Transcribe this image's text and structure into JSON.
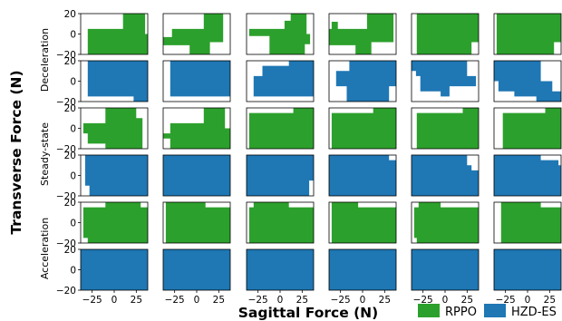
{
  "chart_data": {
    "type": "area",
    "xlabel": "Sagittal Force (N)",
    "ylabel": "Transverse Force (N)",
    "xlim": [
      -38,
      38
    ],
    "ylim": [
      -20,
      20
    ],
    "x_ticks": [
      -25,
      0,
      25
    ],
    "y_ticks": [
      20,
      0,
      -20
    ],
    "colors": {
      "RPPO": "#2ca02c",
      "HZD-ES": "#1f77b4"
    },
    "legend": {
      "placement": "bottom-right",
      "entries": [
        "RPPO",
        "HZD-ES"
      ]
    },
    "row_groups": [
      "Deceleration",
      "Steady-state",
      "Acceleration"
    ],
    "rows": [
      {
        "group": "Deceleration",
        "series": "RPPO",
        "panels": [
          [
            [
              -30,
              -20
            ],
            [
              -30,
              5
            ],
            [
              10,
              5
            ],
            [
              10,
              20
            ],
            [
              35,
              20
            ],
            [
              35,
              0
            ],
            [
              42,
              0
            ],
            [
              42,
              -20
            ]
          ],
          [
            [
              -38,
              -11
            ],
            [
              -38,
              -3
            ],
            [
              -28,
              -3
            ],
            [
              -28,
              5
            ],
            [
              8,
              5
            ],
            [
              8,
              20
            ],
            [
              30,
              20
            ],
            [
              30,
              -8
            ],
            [
              15,
              -8
            ],
            [
              15,
              -20
            ],
            [
              -8,
              -20
            ],
            [
              -8,
              -11
            ]
          ],
          [
            [
              -12,
              -20
            ],
            [
              -12,
              -2
            ],
            [
              -35,
              -2
            ],
            [
              -35,
              5
            ],
            [
              5,
              5
            ],
            [
              5,
              13
            ],
            [
              12,
              13
            ],
            [
              12,
              20
            ],
            [
              30,
              20
            ],
            [
              30,
              0
            ],
            [
              34,
              0
            ],
            [
              34,
              -10
            ],
            [
              28,
              -10
            ],
            [
              28,
              -20
            ]
          ],
          [
            [
              -38,
              -11
            ],
            [
              -38,
              5
            ],
            [
              -35,
              5
            ],
            [
              -35,
              12
            ],
            [
              -28,
              12
            ],
            [
              -28,
              5
            ],
            [
              5,
              5
            ],
            [
              5,
              20
            ],
            [
              35,
              20
            ],
            [
              35,
              -8
            ],
            [
              10,
              -8
            ],
            [
              10,
              -20
            ],
            [
              -8,
              -20
            ],
            [
              -8,
              -11
            ]
          ],
          [
            [
              -32,
              -20
            ],
            [
              -32,
              20
            ],
            [
              40,
              20
            ],
            [
              40,
              -8
            ],
            [
              30,
              -8
            ],
            [
              30,
              -20
            ]
          ],
          [
            [
              -35,
              -20
            ],
            [
              -35,
              20
            ],
            [
              38,
              20
            ],
            [
              38,
              -8
            ],
            [
              30,
              -8
            ],
            [
              30,
              -20
            ]
          ]
        ]
      },
      {
        "group": "Deceleration",
        "series": "HZD-ES",
        "panels": [
          [
            [
              -30,
              -15
            ],
            [
              -30,
              20
            ],
            [
              38,
              20
            ],
            [
              38,
              -20
            ],
            [
              22,
              -20
            ],
            [
              22,
              -15
            ]
          ],
          [
            [
              -30,
              -15
            ],
            [
              -30,
              20
            ],
            [
              38,
              20
            ],
            [
              38,
              -15
            ]
          ],
          [
            [
              -30,
              -15
            ],
            [
              -30,
              5
            ],
            [
              -20,
              5
            ],
            [
              -20,
              15
            ],
            [
              10,
              15
            ],
            [
              10,
              20
            ],
            [
              38,
              20
            ],
            [
              38,
              -15
            ]
          ],
          [
            [
              -30,
              -5
            ],
            [
              -30,
              10
            ],
            [
              -15,
              10
            ],
            [
              -15,
              20
            ],
            [
              38,
              20
            ],
            [
              38,
              -5
            ],
            [
              30,
              -5
            ],
            [
              30,
              -20
            ],
            [
              -18,
              -20
            ],
            [
              -18,
              -5
            ]
          ],
          [
            [
              -38,
              10
            ],
            [
              -38,
              20
            ],
            [
              25,
              20
            ],
            [
              25,
              5
            ],
            [
              35,
              5
            ],
            [
              35,
              -5
            ],
            [
              5,
              -5
            ],
            [
              5,
              -15
            ],
            [
              -5,
              -15
            ],
            [
              -5,
              -10
            ],
            [
              -28,
              -10
            ],
            [
              -28,
              5
            ],
            [
              -33,
              5
            ],
            [
              -33,
              10
            ]
          ],
          [
            [
              -38,
              5
            ],
            [
              -38,
              20
            ],
            [
              15,
              20
            ],
            [
              15,
              0
            ],
            [
              28,
              0
            ],
            [
              28,
              -10
            ],
            [
              38,
              -10
            ],
            [
              38,
              -20
            ],
            [
              10,
              -20
            ],
            [
              10,
              -15
            ],
            [
              -15,
              -15
            ],
            [
              -15,
              -10
            ],
            [
              -33,
              -10
            ],
            [
              -33,
              0
            ],
            [
              -38,
              0
            ]
          ]
        ]
      },
      {
        "group": "Steady-state",
        "series": "RPPO",
        "panels": [
          [
            [
              -30,
              -15
            ],
            [
              -30,
              -5
            ],
            [
              -35,
              -5
            ],
            [
              -35,
              5
            ],
            [
              -10,
              5
            ],
            [
              -10,
              20
            ],
            [
              25,
              20
            ],
            [
              25,
              10
            ],
            [
              32,
              10
            ],
            [
              32,
              -20
            ],
            [
              -10,
              -20
            ],
            [
              -10,
              -15
            ]
          ],
          [
            [
              -30,
              -20
            ],
            [
              -30,
              -10
            ],
            [
              -38,
              -10
            ],
            [
              -38,
              -5
            ],
            [
              -30,
              -5
            ],
            [
              -30,
              5
            ],
            [
              8,
              5
            ],
            [
              8,
              20
            ],
            [
              32,
              20
            ],
            [
              32,
              0
            ],
            [
              38,
              0
            ],
            [
              38,
              -20
            ]
          ],
          [
            [
              -35,
              -20
            ],
            [
              -35,
              15
            ],
            [
              15,
              15
            ],
            [
              15,
              20
            ],
            [
              38,
              20
            ],
            [
              38,
              -20
            ]
          ],
          [
            [
              -35,
              -20
            ],
            [
              -35,
              15
            ],
            [
              12,
              15
            ],
            [
              12,
              20
            ],
            [
              38,
              20
            ],
            [
              38,
              -20
            ]
          ],
          [
            [
              -32,
              -20
            ],
            [
              -32,
              15
            ],
            [
              20,
              15
            ],
            [
              20,
              20
            ],
            [
              38,
              20
            ],
            [
              38,
              -20
            ]
          ],
          [
            [
              -28,
              -20
            ],
            [
              -28,
              15
            ],
            [
              20,
              15
            ],
            [
              20,
              20
            ],
            [
              38,
              20
            ],
            [
              38,
              -20
            ]
          ]
        ]
      },
      {
        "group": "Steady-state",
        "series": "HZD-ES",
        "panels": [
          [
            [
              -33,
              -10
            ],
            [
              -33,
              20
            ],
            [
              38,
              20
            ],
            [
              38,
              -20
            ],
            [
              -28,
              -20
            ],
            [
              -28,
              -10
            ]
          ],
          [
            [
              -38,
              -20
            ],
            [
              -38,
              20
            ],
            [
              38,
              20
            ],
            [
              38,
              -20
            ]
          ],
          [
            [
              -38,
              -20
            ],
            [
              -38,
              20
            ],
            [
              38,
              20
            ],
            [
              38,
              -5
            ],
            [
              33,
              -5
            ],
            [
              33,
              -20
            ]
          ],
          [
            [
              -38,
              -20
            ],
            [
              -38,
              20
            ],
            [
              30,
              20
            ],
            [
              30,
              15
            ],
            [
              38,
              15
            ],
            [
              38,
              -20
            ]
          ],
          [
            [
              -38,
              -20
            ],
            [
              -38,
              20
            ],
            [
              25,
              20
            ],
            [
              25,
              10
            ],
            [
              30,
              10
            ],
            [
              30,
              5
            ],
            [
              38,
              5
            ],
            [
              38,
              -20
            ]
          ],
          [
            [
              -38,
              -20
            ],
            [
              -38,
              20
            ],
            [
              15,
              20
            ],
            [
              15,
              15
            ],
            [
              35,
              15
            ],
            [
              35,
              10
            ],
            [
              38,
              10
            ],
            [
              38,
              -20
            ]
          ]
        ]
      },
      {
        "group": "Acceleration",
        "series": "RPPO",
        "panels": [
          [
            [
              -30,
              -20
            ],
            [
              -30,
              -15
            ],
            [
              -35,
              -15
            ],
            [
              -35,
              15
            ],
            [
              -10,
              15
            ],
            [
              -10,
              20
            ],
            [
              30,
              20
            ],
            [
              30,
              15
            ],
            [
              38,
              15
            ],
            [
              38,
              -20
            ]
          ],
          [
            [
              -35,
              -20
            ],
            [
              -35,
              20
            ],
            [
              10,
              20
            ],
            [
              10,
              15
            ],
            [
              38,
              15
            ],
            [
              38,
              -20
            ]
          ],
          [
            [
              -35,
              -20
            ],
            [
              -35,
              15
            ],
            [
              -30,
              15
            ],
            [
              -30,
              20
            ],
            [
              10,
              20
            ],
            [
              10,
              15
            ],
            [
              38,
              15
            ],
            [
              38,
              -20
            ]
          ],
          [
            [
              -35,
              -20
            ],
            [
              -35,
              20
            ],
            [
              -5,
              20
            ],
            [
              -5,
              15
            ],
            [
              38,
              15
            ],
            [
              38,
              -20
            ]
          ],
          [
            [
              -32,
              -20
            ],
            [
              -32,
              -15
            ],
            [
              -35,
              -15
            ],
            [
              -35,
              15
            ],
            [
              -30,
              15
            ],
            [
              -30,
              20
            ],
            [
              -5,
              20
            ],
            [
              -5,
              15
            ],
            [
              38,
              15
            ],
            [
              38,
              -20
            ]
          ],
          [
            [
              -30,
              -20
            ],
            [
              -30,
              20
            ],
            [
              15,
              20
            ],
            [
              15,
              15
            ],
            [
              38,
              15
            ],
            [
              38,
              -20
            ]
          ]
        ]
      },
      {
        "group": "Acceleration",
        "series": "HZD-ES",
        "panels": [
          [
            [
              -38,
              -20
            ],
            [
              -38,
              20
            ],
            [
              38,
              20
            ],
            [
              38,
              -20
            ]
          ],
          [
            [
              -38,
              -20
            ],
            [
              -38,
              20
            ],
            [
              38,
              20
            ],
            [
              38,
              -20
            ]
          ],
          [
            [
              -38,
              -20
            ],
            [
              -38,
              20
            ],
            [
              38,
              20
            ],
            [
              38,
              -20
            ]
          ],
          [
            [
              -38,
              -20
            ],
            [
              -38,
              20
            ],
            [
              38,
              20
            ],
            [
              38,
              -20
            ]
          ],
          [
            [
              -38,
              -20
            ],
            [
              -38,
              20
            ],
            [
              38,
              20
            ],
            [
              38,
              -20
            ]
          ],
          [
            [
              -38,
              -20
            ],
            [
              -38,
              20
            ],
            [
              38,
              20
            ],
            [
              38,
              -20
            ]
          ]
        ]
      }
    ]
  }
}
